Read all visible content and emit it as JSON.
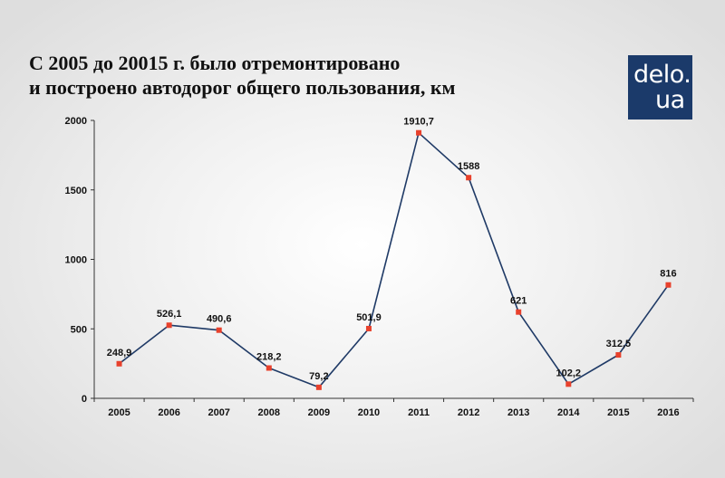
{
  "header": {
    "title_line1": "С 2005 до 20015 г. было отремонтировано",
    "title_line2": "и построено автодорог общего пользования, км"
  },
  "logo": {
    "line1": "delo.",
    "line2": "ua",
    "background": "#1b3a6a"
  },
  "chart_data": {
    "type": "line",
    "categories": [
      "2005",
      "2006",
      "2007",
      "2008",
      "2009",
      "2010",
      "2011",
      "2012",
      "2013",
      "2014",
      "2015",
      "2016"
    ],
    "values": [
      248.9,
      526.1,
      490.6,
      218.2,
      79.2,
      501.9,
      1910.7,
      1588,
      621,
      102.2,
      312.5,
      816
    ],
    "data_labels": [
      "248,9",
      "526,1",
      "490,6",
      "218,2",
      "79,2",
      "501,9",
      "1910,7",
      "1588",
      "621",
      "102,2",
      "312,5",
      "816"
    ],
    "yticks": [
      0,
      500,
      1000,
      1500,
      2000
    ],
    "ylim": [
      0,
      2000
    ],
    "grid": false,
    "line_color": "#1f3a66",
    "marker_color": "#e8412c"
  }
}
